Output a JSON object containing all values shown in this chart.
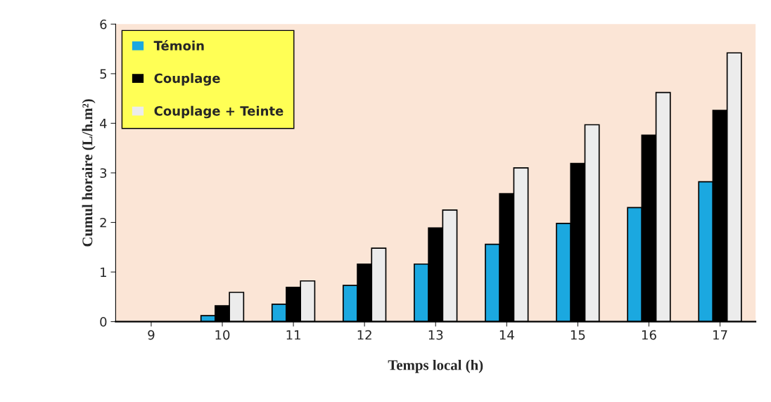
{
  "chart_data": {
    "type": "bar",
    "xlabel": "Temps local (h)",
    "ylabel": "Cumul horaire (L/h.m²)",
    "categories": [
      "9",
      "10",
      "11",
      "12",
      "13",
      "14",
      "15",
      "16",
      "17"
    ],
    "series": [
      {
        "name": "Témoin",
        "color": "#1ba8e0",
        "values": [
          0,
          0.12,
          0.35,
          0.73,
          1.16,
          1.56,
          1.98,
          2.3,
          2.82
        ]
      },
      {
        "name": "Couplage",
        "color": "#000000",
        "values": [
          0,
          0.32,
          0.69,
          1.16,
          1.89,
          2.58,
          3.19,
          3.76,
          4.26
        ]
      },
      {
        "name": "Couplage + Teinte",
        "color": "#ececec",
        "values": [
          0,
          0.59,
          0.82,
          1.48,
          2.25,
          3.1,
          3.97,
          4.62,
          5.42
        ]
      }
    ],
    "ylim": [
      0,
      6
    ],
    "yticks": [
      0,
      1,
      2,
      3,
      4,
      5,
      6
    ],
    "grid": false,
    "legend": "top left"
  }
}
